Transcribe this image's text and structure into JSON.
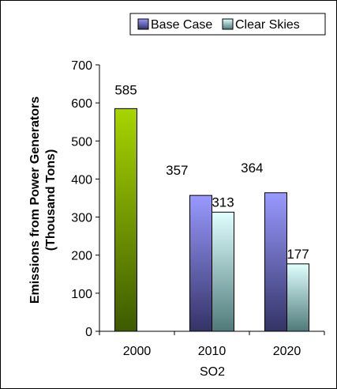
{
  "chart_data": {
    "type": "bar",
    "categories": [
      "2000",
      "2010",
      "2020"
    ],
    "series": [
      {
        "name": "Base Case",
        "values": [
          585,
          357,
          364
        ],
        "color_top": "#9999ff",
        "color_bottom": "#333366",
        "first_year_color_top": "#a8d400",
        "first_year_color_bottom": "#3d5a00"
      },
      {
        "name": "Clear Skies",
        "values": [
          null,
          313,
          177
        ],
        "color_top": "#e0ffff",
        "color_bottom": "#4f7a7a"
      }
    ],
    "data_labels": [
      "585",
      "357",
      "313",
      "364",
      "177"
    ],
    "title": "",
    "xlabel": "SO2",
    "ylabel": "Emissions from Power Generators (Thousand Tons)",
    "ylabel_lines": [
      "Emissions from Power Generators",
      "(Thousand Tons)"
    ],
    "ylim": [
      0,
      700
    ],
    "yticks": [
      0,
      100,
      200,
      300,
      400,
      500,
      600,
      700
    ],
    "grid": false,
    "legend_position": "top-right",
    "background_color": "#ffffff",
    "axis_color": "#000000"
  }
}
